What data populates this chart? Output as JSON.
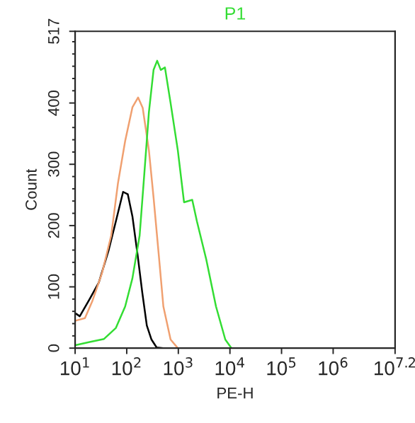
{
  "chart_data": {
    "type": "line",
    "title": "P1",
    "xlabel": "PE-H",
    "ylabel": "Count",
    "log": "x",
    "grid": false,
    "legend": false,
    "marker": "none",
    "line_style": "solid",
    "xlim": [
      10,
      15848932
    ],
    "xticks": [
      {
        "value": 10,
        "label": "10$^{1}$"
      },
      {
        "value": 100,
        "label": "10$^{2}$"
      },
      {
        "value": 1000,
        "label": "10$^{3}$"
      },
      {
        "value": 10000,
        "label": "10$^{4}$"
      },
      {
        "value": 100000,
        "label": "10$^{5}$"
      },
      {
        "value": 1000000,
        "label": "10$^{6}$"
      },
      {
        "value": 15848932,
        "label": "10$^{7.2}$"
      }
    ],
    "ylim": [
      0,
      517
    ],
    "yticks": [
      0,
      100,
      200,
      300,
      400,
      517
    ],
    "series": [
      {
        "color": "#000000",
        "x": [
          10.5,
          12.3,
          19.1,
          28.8,
          44.7,
          61.7,
          85.1,
          105,
          129,
          162,
          200,
          245,
          302,
          380,
          513
        ],
        "values": [
          56,
          52,
          80,
          107,
          160,
          207,
          255,
          251,
          215,
          153,
          91,
          37,
          14,
          1,
          0
        ]
      },
      {
        "color": "#f0a070",
        "x": [
          10.5,
          15.5,
          21.4,
          33.1,
          50.1,
          67.6,
          93.3,
          129,
          166,
          204,
          269,
          331,
          417,
          513,
          708,
          977
        ],
        "values": [
          45,
          49,
          76,
          122,
          184,
          269,
          338,
          393,
          409,
          392,
          323,
          246,
          153,
          68,
          14,
          0
        ]
      },
      {
        "color": "#33dd33",
        "x": [
          10.5,
          19.1,
          36.3,
          61.7,
          93.3,
          129,
          178,
          219,
          269,
          331,
          389,
          457,
          550,
          708,
          977,
          1290,
          1860,
          2290,
          3470,
          5370,
          8130,
          10700
        ],
        "values": [
          5,
          10,
          15,
          33,
          68,
          114,
          184,
          284,
          385,
          454,
          469,
          454,
          458,
          400,
          323,
          238,
          242,
          207,
          145,
          68,
          14,
          0
        ]
      }
    ]
  }
}
